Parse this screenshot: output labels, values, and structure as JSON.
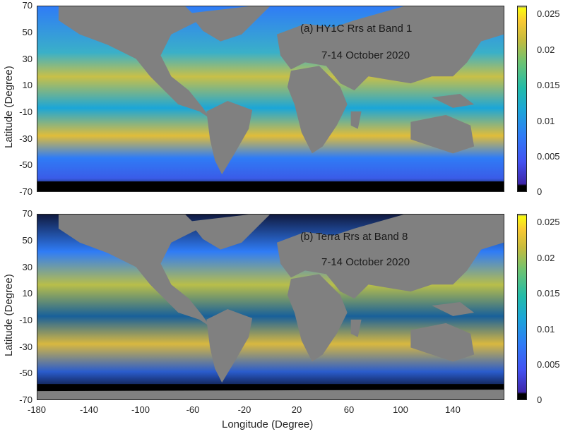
{
  "panels": [
    {
      "id": "a",
      "title": "(a) HY1C Rrs at Band 1",
      "date": "7-14 October 2020"
    },
    {
      "id": "b",
      "title": "(b) Terra Rrs at Band 8",
      "date": "7-14 October 2020"
    }
  ],
  "axes": {
    "ylabel": "Latitude (Degree)",
    "xlabel": "Longitude (Degree)",
    "yticks": [
      "70",
      "50",
      "30",
      "10",
      "-10",
      "-30",
      "-50",
      "-70"
    ],
    "xticks": [
      "-180",
      "-140",
      "-100",
      "-60",
      "-20",
      "20",
      "60",
      "100",
      "140"
    ],
    "xlim": [
      -180,
      180
    ],
    "ylim": [
      -70,
      70
    ]
  },
  "colorbar": {
    "ticks": [
      "0.025",
      "0.02",
      "0.015",
      "0.01",
      "0.005",
      "0"
    ],
    "range": [
      0,
      0.026
    ],
    "colormap": "parula",
    "land_color": "#808080",
    "nodata_color": "#000000"
  }
}
